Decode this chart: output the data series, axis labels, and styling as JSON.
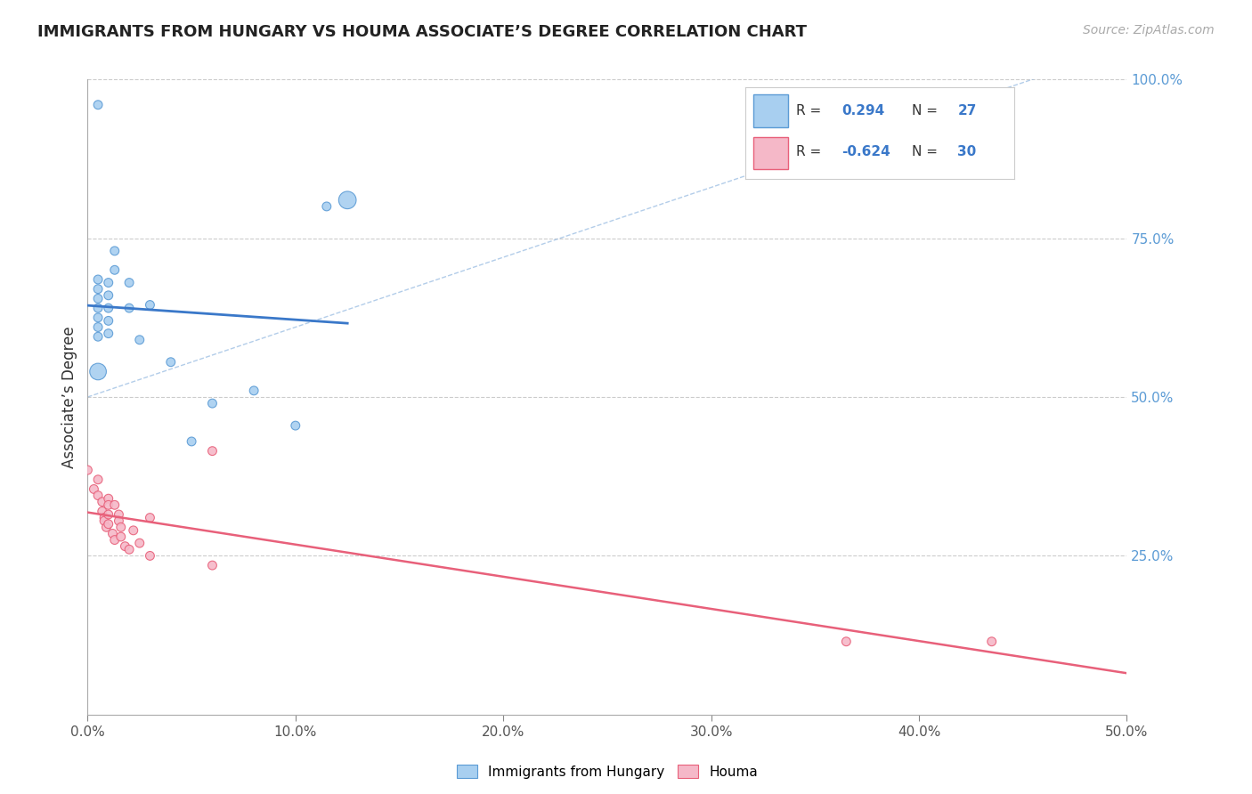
{
  "title": "IMMIGRANTS FROM HUNGARY VS HOUMA ASSOCIATE’S DEGREE CORRELATION CHART",
  "source": "Source: ZipAtlas.com",
  "ylabel": "Associate’s Degree",
  "xlim": [
    0.0,
    0.5
  ],
  "ylim": [
    0.0,
    1.0
  ],
  "xtick_vals": [
    0.0,
    0.1,
    0.2,
    0.3,
    0.4,
    0.5
  ],
  "xtick_labels": [
    "0.0%",
    "10.0%",
    "20.0%",
    "30.0%",
    "40.0%",
    "50.0%"
  ],
  "ytick_vals": [
    0.25,
    0.5,
    0.75,
    1.0
  ],
  "ytick_labels_right": [
    "25.0%",
    "50.0%",
    "75.0%",
    "100.0%"
  ],
  "blue_R": 0.294,
  "blue_N": 27,
  "pink_R": -0.624,
  "pink_N": 30,
  "blue_color": "#A8CFF0",
  "pink_color": "#F5B8C8",
  "blue_edge_color": "#5B9BD5",
  "pink_edge_color": "#E8607A",
  "blue_line_color": "#3A78C9",
  "pink_line_color": "#E8607A",
  "ref_line_color": "#93B8E0",
  "blue_scatter": [
    [
      0.005,
      0.685
    ],
    [
      0.005,
      0.67
    ],
    [
      0.005,
      0.655
    ],
    [
      0.005,
      0.64
    ],
    [
      0.005,
      0.625
    ],
    [
      0.005,
      0.61
    ],
    [
      0.005,
      0.595
    ],
    [
      0.005,
      0.54
    ],
    [
      0.01,
      0.68
    ],
    [
      0.01,
      0.66
    ],
    [
      0.01,
      0.64
    ],
    [
      0.01,
      0.62
    ],
    [
      0.01,
      0.6
    ],
    [
      0.013,
      0.73
    ],
    [
      0.013,
      0.7
    ],
    [
      0.02,
      0.68
    ],
    [
      0.02,
      0.64
    ],
    [
      0.025,
      0.59
    ],
    [
      0.03,
      0.645
    ],
    [
      0.04,
      0.555
    ],
    [
      0.05,
      0.43
    ],
    [
      0.06,
      0.49
    ],
    [
      0.08,
      0.51
    ],
    [
      0.1,
      0.455
    ],
    [
      0.115,
      0.8
    ],
    [
      0.125,
      0.81
    ],
    [
      0.005,
      0.96
    ]
  ],
  "blue_sizes": [
    50,
    50,
    50,
    50,
    50,
    50,
    50,
    180,
    50,
    50,
    50,
    50,
    50,
    50,
    50,
    50,
    50,
    50,
    50,
    50,
    50,
    50,
    50,
    50,
    50,
    200,
    50
  ],
  "pink_scatter": [
    [
      0.0,
      0.385
    ],
    [
      0.003,
      0.355
    ],
    [
      0.005,
      0.37
    ],
    [
      0.005,
      0.345
    ],
    [
      0.007,
      0.335
    ],
    [
      0.007,
      0.32
    ],
    [
      0.008,
      0.31
    ],
    [
      0.008,
      0.305
    ],
    [
      0.009,
      0.295
    ],
    [
      0.01,
      0.34
    ],
    [
      0.01,
      0.33
    ],
    [
      0.01,
      0.315
    ],
    [
      0.01,
      0.3
    ],
    [
      0.012,
      0.285
    ],
    [
      0.013,
      0.33
    ],
    [
      0.013,
      0.275
    ],
    [
      0.015,
      0.315
    ],
    [
      0.015,
      0.305
    ],
    [
      0.016,
      0.295
    ],
    [
      0.016,
      0.28
    ],
    [
      0.018,
      0.265
    ],
    [
      0.02,
      0.26
    ],
    [
      0.022,
      0.29
    ],
    [
      0.025,
      0.27
    ],
    [
      0.03,
      0.25
    ],
    [
      0.03,
      0.31
    ],
    [
      0.06,
      0.235
    ],
    [
      0.06,
      0.415
    ],
    [
      0.365,
      0.115
    ],
    [
      0.435,
      0.115
    ]
  ],
  "pink_sizes": [
    50,
    50,
    50,
    50,
    50,
    50,
    50,
    50,
    50,
    50,
    50,
    50,
    50,
    50,
    50,
    50,
    50,
    50,
    50,
    50,
    50,
    50,
    50,
    50,
    50,
    50,
    50,
    50,
    50,
    50
  ],
  "background_color": "#FFFFFF",
  "grid_color": "#CCCCCC",
  "title_color": "#222222"
}
